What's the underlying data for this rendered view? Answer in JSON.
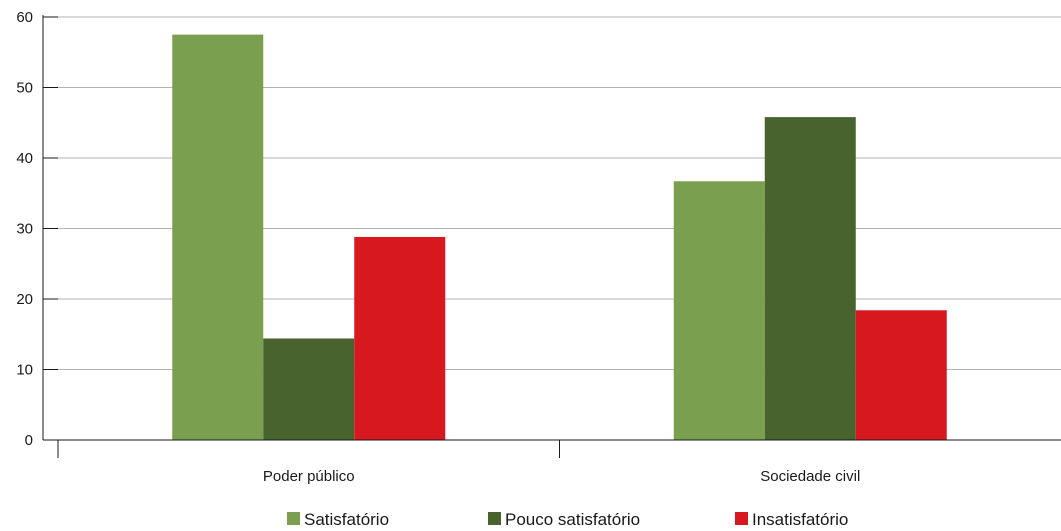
{
  "chart_data": {
    "type": "bar",
    "categories": [
      "Poder público",
      "Sociedade civil"
    ],
    "series": [
      {
        "name": "Satisfatório",
        "values": [
          57.5,
          36.7
        ],
        "color": "#7a9f4f"
      },
      {
        "name": "Pouco satisfatório",
        "values": [
          14.4,
          45.8
        ],
        "color": "#48632e"
      },
      {
        "name": "Insatisfatório",
        "values": [
          28.8,
          18.4
        ],
        "color": "#d7191f"
      }
    ],
    "yticks": [
      0,
      10,
      20,
      30,
      40,
      50,
      60
    ],
    "ylim": [
      0,
      60
    ],
    "grid": true,
    "legend_position": "bottom",
    "title": "",
    "xlabel": "",
    "ylabel": ""
  }
}
